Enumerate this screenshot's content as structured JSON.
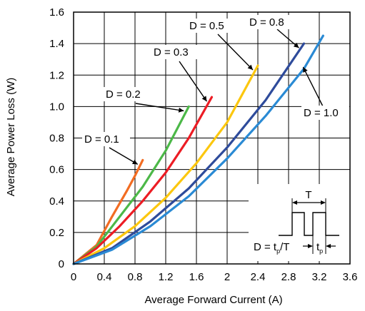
{
  "chart_data": {
    "type": "line",
    "xlabel": "Average Forward Current (A)",
    "ylabel": "Average Power Loss (W)",
    "xlim": [
      0,
      3.6
    ],
    "ylim": [
      0,
      1.6
    ],
    "x_ticks": [
      "0",
      "0.4",
      "0.8",
      "1.2",
      "1.6",
      "2",
      "2.4",
      "2.8",
      "3.2",
      "3.6"
    ],
    "y_ticks": [
      "0",
      "0.2",
      "0.4",
      "0.6",
      "0.8",
      "1.0",
      "1.2",
      "1.4",
      "1.6"
    ],
    "grid": true,
    "series": [
      {
        "name": "D = 0.1",
        "color": "#f26c22",
        "points": [
          [
            0,
            0
          ],
          [
            0.3,
            0.12
          ],
          [
            0.5,
            0.3
          ],
          [
            0.7,
            0.47
          ],
          [
            0.8,
            0.56
          ],
          [
            0.9,
            0.66
          ]
        ]
      },
      {
        "name": "D = 0.2",
        "color": "#4cb848",
        "points": [
          [
            0,
            0
          ],
          [
            0.3,
            0.11
          ],
          [
            0.6,
            0.3
          ],
          [
            0.9,
            0.49
          ],
          [
            1.2,
            0.72
          ],
          [
            1.5,
            1.0
          ]
        ]
      },
      {
        "name": "D = 0.3",
        "color": "#ec1c24",
        "points": [
          [
            0,
            0
          ],
          [
            0.3,
            0.1
          ],
          [
            0.6,
            0.24
          ],
          [
            0.9,
            0.4
          ],
          [
            1.2,
            0.58
          ],
          [
            1.5,
            0.8
          ],
          [
            1.8,
            1.06
          ]
        ]
      },
      {
        "name": "D = 0.5",
        "color": "#fcc70e",
        "points": [
          [
            0,
            0
          ],
          [
            0.4,
            0.1
          ],
          [
            0.8,
            0.24
          ],
          [
            1.2,
            0.42
          ],
          [
            1.6,
            0.64
          ],
          [
            2.0,
            0.9
          ],
          [
            2.4,
            1.26
          ]
        ]
      },
      {
        "name": "D = 0.8",
        "color": "#2e4b9b",
        "points": [
          [
            0,
            0
          ],
          [
            0.5,
            0.1
          ],
          [
            1.0,
            0.27
          ],
          [
            1.5,
            0.48
          ],
          [
            2.0,
            0.74
          ],
          [
            2.5,
            1.04
          ],
          [
            3.0,
            1.4
          ]
        ]
      },
      {
        "name": "D = 1.0",
        "color": "#2a8ad4",
        "points": [
          [
            0,
            0
          ],
          [
            0.5,
            0.09
          ],
          [
            1.0,
            0.24
          ],
          [
            1.5,
            0.43
          ],
          [
            2.0,
            0.67
          ],
          [
            2.5,
            0.94
          ],
          [
            3.0,
            1.24
          ],
          [
            3.25,
            1.45
          ]
        ]
      }
    ],
    "inset": {
      "period_label": "T",
      "duty_formula": "D = tp/T",
      "duty_formula_main": "D = t",
      "duty_formula_sub": "p",
      "duty_formula_tail": "/T",
      "pulse_label_main": "t",
      "pulse_label_sub": "p"
    }
  }
}
